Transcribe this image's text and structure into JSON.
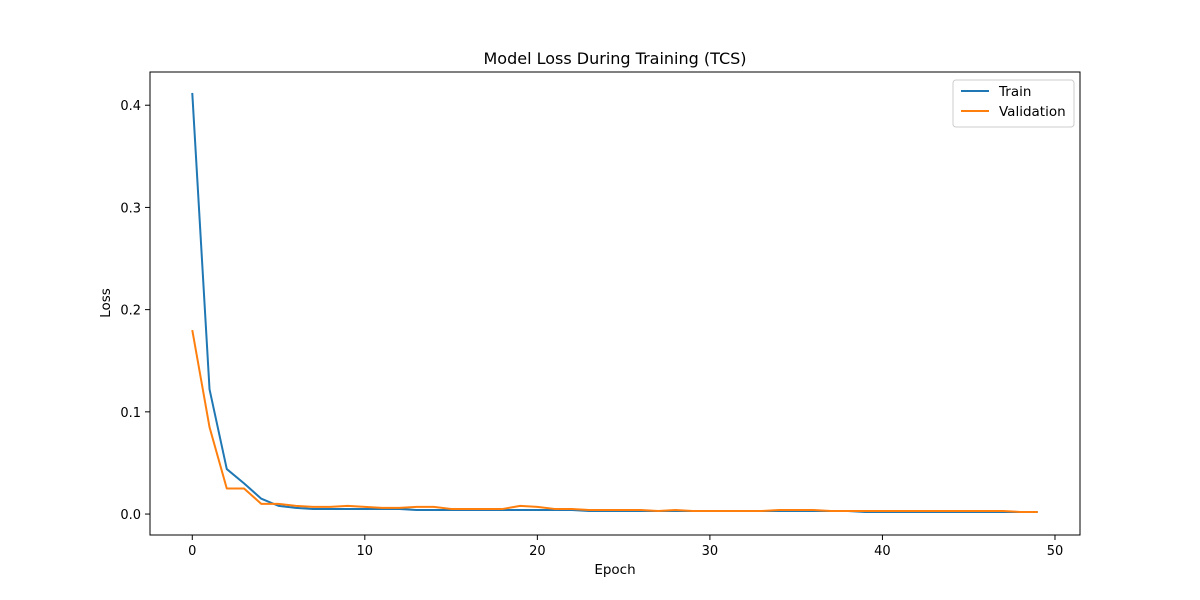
{
  "chart_data": {
    "type": "line",
    "title": "Model Loss During Training (TCS)",
    "xlabel": "Epoch",
    "ylabel": "Loss",
    "xlim": [
      -2.45,
      51.45
    ],
    "ylim": [
      -0.0205,
      0.4325
    ],
    "xticks": [
      0,
      10,
      20,
      30,
      40,
      50
    ],
    "yticks": [
      0.0,
      0.1,
      0.2,
      0.3,
      0.4
    ],
    "xtick_labels": [
      "0",
      "10",
      "20",
      "30",
      "40",
      "50"
    ],
    "ytick_labels": [
      "0.0",
      "0.1",
      "0.2",
      "0.3",
      "0.4"
    ],
    "grid": false,
    "legend_position": "top-right",
    "x": [
      0,
      1,
      2,
      3,
      4,
      5,
      6,
      7,
      8,
      9,
      10,
      11,
      12,
      13,
      14,
      15,
      16,
      17,
      18,
      19,
      20,
      21,
      22,
      23,
      24,
      25,
      26,
      27,
      28,
      29,
      30,
      31,
      32,
      33,
      34,
      35,
      36,
      37,
      38,
      39,
      40,
      41,
      42,
      43,
      44,
      45,
      46,
      47,
      48,
      49
    ],
    "series": [
      {
        "name": "Train",
        "color": "#1f77b4",
        "values": [
          0.412,
          0.122,
          0.044,
          0.03,
          0.015,
          0.008,
          0.006,
          0.005,
          0.005,
          0.005,
          0.005,
          0.005,
          0.005,
          0.004,
          0.004,
          0.004,
          0.004,
          0.004,
          0.004,
          0.004,
          0.004,
          0.004,
          0.004,
          0.003,
          0.003,
          0.003,
          0.003,
          0.003,
          0.003,
          0.003,
          0.003,
          0.003,
          0.003,
          0.003,
          0.003,
          0.003,
          0.003,
          0.003,
          0.003,
          0.002,
          0.002,
          0.002,
          0.002,
          0.002,
          0.002,
          0.002,
          0.002,
          0.002,
          0.002,
          0.002
        ]
      },
      {
        "name": "Validation",
        "color": "#ff7f0e",
        "values": [
          0.18,
          0.085,
          0.025,
          0.025,
          0.01,
          0.01,
          0.008,
          0.007,
          0.007,
          0.008,
          0.007,
          0.006,
          0.006,
          0.007,
          0.007,
          0.005,
          0.005,
          0.005,
          0.005,
          0.008,
          0.007,
          0.005,
          0.005,
          0.004,
          0.004,
          0.004,
          0.004,
          0.003,
          0.004,
          0.003,
          0.003,
          0.003,
          0.003,
          0.003,
          0.004,
          0.004,
          0.004,
          0.003,
          0.003,
          0.003,
          0.003,
          0.003,
          0.003,
          0.003,
          0.003,
          0.003,
          0.003,
          0.003,
          0.002,
          0.002
        ]
      }
    ]
  }
}
